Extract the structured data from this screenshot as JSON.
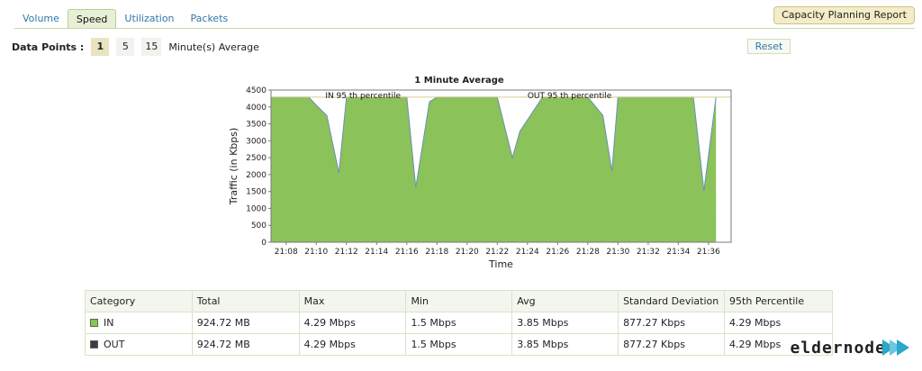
{
  "tabs": [
    {
      "label": "Volume"
    },
    {
      "label": "Speed"
    },
    {
      "label": "Utilization"
    },
    {
      "label": "Packets"
    }
  ],
  "active_tab": "Speed",
  "report_button": "Capacity Planning Report",
  "data_points": {
    "label": "Data Points :",
    "options": [
      "1",
      "5",
      "15"
    ],
    "selected": "1",
    "suffix": "Minute(s) Average"
  },
  "reset_label": "Reset",
  "colors": {
    "in_fill": "#8bc25a",
    "in_line": "#6a8fb8",
    "out_swatch": "#3d3850",
    "percentile_line": "#d4cc8a"
  },
  "chart_data": {
    "type": "area",
    "title": "1 Minute Average",
    "xlabel": "Time",
    "ylabel": "Traffic (in Kbps)",
    "ylim": [
      0,
      4500
    ],
    "yticks": [
      0,
      500,
      1000,
      1500,
      2000,
      2500,
      3000,
      3500,
      4000,
      4500
    ],
    "xlim": [
      7,
      37.5
    ],
    "xticks": [
      "21:08",
      "21:10",
      "21:12",
      "21:14",
      "21:16",
      "21:18",
      "21:20",
      "21:22",
      "21:24",
      "21:26",
      "21:28",
      "21:30",
      "21:32",
      "21:34",
      "21:36"
    ],
    "annotations": [
      "IN 95 th percentile",
      "OUT 95 th percentile"
    ],
    "percentile_value": 4290,
    "series": [
      {
        "name": "IN",
        "x": [
          7,
          9.5,
          10,
          10.7,
          11.5,
          12,
          13,
          15,
          16,
          16.6,
          17.5,
          18,
          19,
          20,
          21,
          22,
          23,
          23.5,
          25,
          26,
          27,
          28,
          29,
          29.6,
          30,
          31,
          32,
          33,
          34,
          35,
          35.7,
          36.5
        ],
        "values": [
          4290,
          4290,
          4050,
          3750,
          2050,
          4290,
          4290,
          4290,
          4290,
          1620,
          4150,
          4290,
          4290,
          4290,
          4290,
          4290,
          2500,
          3280,
          4290,
          4290,
          4290,
          4290,
          3750,
          2100,
          4290,
          4290,
          4290,
          4290,
          4290,
          4290,
          1520,
          4290
        ]
      }
    ]
  },
  "table": {
    "headers": [
      "Category",
      "Total",
      "Max",
      "Min",
      "Avg",
      "Standard Deviation",
      "95th Percentile"
    ],
    "rows": [
      {
        "category": "IN",
        "total": "924.72 MB",
        "max": "4.29 Mbps",
        "min": "1.5 Mbps",
        "avg": "3.85 Mbps",
        "std": "877.27 Kbps",
        "p95": "4.29 Mbps"
      },
      {
        "category": "OUT",
        "total": "924.72 MB",
        "max": "4.29 Mbps",
        "min": "1.5 Mbps",
        "avg": "3.85 Mbps",
        "std": "877.27 Kbps",
        "p95": "4.29 Mbps"
      }
    ]
  },
  "watermark": "eldernode"
}
